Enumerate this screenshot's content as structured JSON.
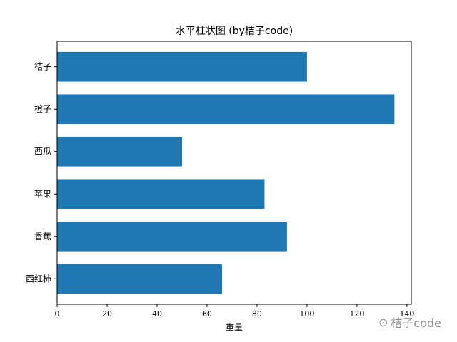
{
  "chart_data": {
    "type": "bar",
    "orientation": "horizontal",
    "title": "水平柱状图 (by桔子code)",
    "xlabel": "重量",
    "ylabel": "",
    "categories": [
      "桔子",
      "橙子",
      "西瓜",
      "苹果",
      "香蕉",
      "西红柿"
    ],
    "values": [
      100,
      135,
      50,
      83,
      92,
      66
    ],
    "xlim": [
      0,
      141.75
    ],
    "xticks": [
      0,
      20,
      40,
      60,
      80,
      100,
      120,
      140
    ],
    "bar_color": "#1f77b4",
    "grid": false,
    "legend": "none"
  },
  "watermark": {
    "text": "桔子code",
    "icon": "wechat-icon"
  }
}
